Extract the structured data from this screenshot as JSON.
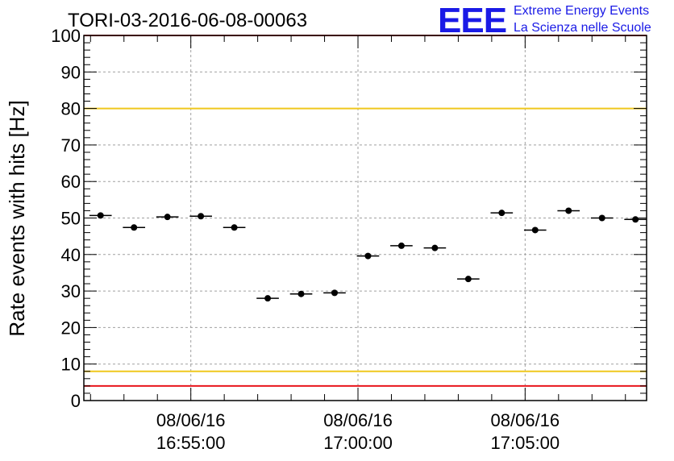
{
  "chart_data": {
    "type": "scatter",
    "title": "TORI-03-2016-06-08-00063",
    "ylabel": "Rate events with hits [Hz]",
    "xlabel": "",
    "ylim": [
      0,
      100
    ],
    "yticks": [
      0,
      10,
      20,
      30,
      40,
      50,
      60,
      70,
      80,
      90,
      100
    ],
    "grid": true,
    "x_ticks": [
      {
        "date": "08/06/16",
        "time": "16:55:00"
      },
      {
        "date": "08/06/16",
        "time": "17:00:00"
      },
      {
        "date": "08/06/16",
        "time": "17:05:00"
      }
    ],
    "x_range": [
      "16:51:48",
      "17:08:38"
    ],
    "points": [
      {
        "x": "16:52:18",
        "y": 50.7
      },
      {
        "x": "16:53:18",
        "y": 47.4
      },
      {
        "x": "16:54:18",
        "y": 50.3
      },
      {
        "x": "16:55:18",
        "y": 50.5
      },
      {
        "x": "16:56:18",
        "y": 47.4
      },
      {
        "x": "16:57:18",
        "y": 28.0
      },
      {
        "x": "16:58:18",
        "y": 29.2
      },
      {
        "x": "16:59:18",
        "y": 29.5
      },
      {
        "x": "17:00:18",
        "y": 39.6
      },
      {
        "x": "17:01:18",
        "y": 42.4
      },
      {
        "x": "17:02:18",
        "y": 41.8
      },
      {
        "x": "17:03:18",
        "y": 33.3
      },
      {
        "x": "17:04:18",
        "y": 51.4
      },
      {
        "x": "17:05:18",
        "y": 46.7
      },
      {
        "x": "17:06:18",
        "y": 52.0
      },
      {
        "x": "17:07:18",
        "y": 50.0
      },
      {
        "x": "17:08:18",
        "y": 49.6
      }
    ],
    "x_error_half_width_seconds": 20,
    "reference_lines": [
      {
        "y": 100,
        "color": "#e8141b"
      },
      {
        "y": 80,
        "color": "#efc81e"
      },
      {
        "y": 8,
        "color": "#efc81e"
      },
      {
        "y": 4,
        "color": "#e8141b"
      }
    ]
  },
  "logo": {
    "mark": "EEE",
    "line1": "Extreme Energy Events",
    "line2": "La Scienza nelle Scuole",
    "color": "#1a1ae6"
  }
}
